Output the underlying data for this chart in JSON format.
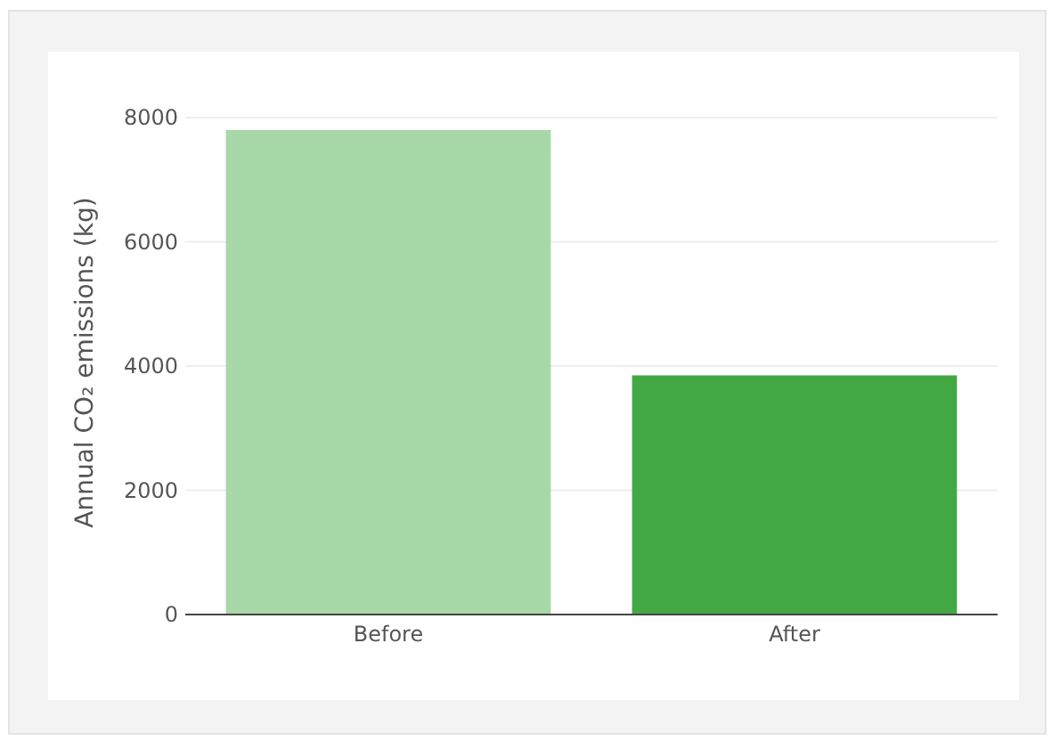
{
  "chart_data": {
    "type": "bar",
    "ylabel": "Annual CO₂ emissions (kg)",
    "categories": [
      "Before",
      "After"
    ],
    "values": [
      7800,
      3850
    ],
    "colors": [
      "#a8d8a8",
      "#43a843"
    ],
    "ylim": [
      0,
      8000
    ],
    "yticks": [
      0,
      2000,
      4000,
      6000,
      8000
    ],
    "grid": "y"
  }
}
